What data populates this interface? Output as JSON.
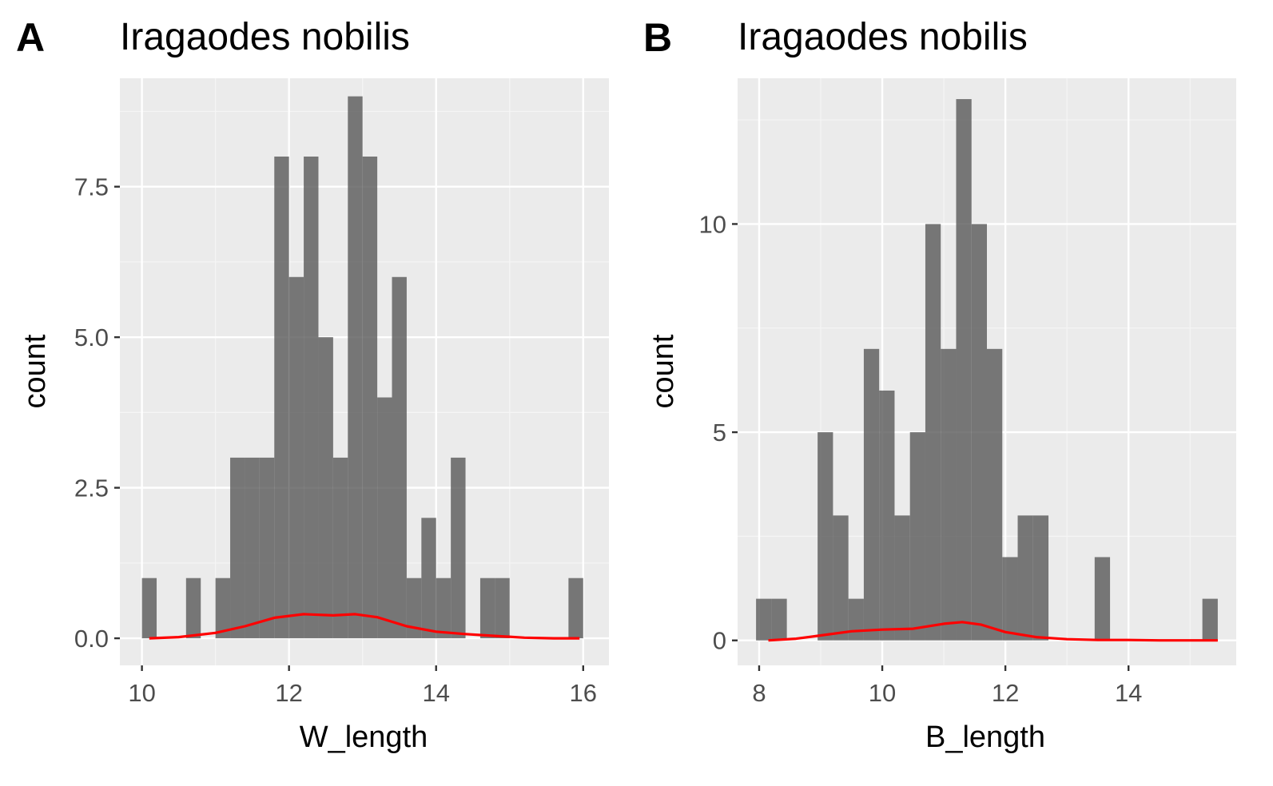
{
  "chart_data": [
    {
      "panel": "A",
      "type": "bar",
      "subtype": "histogram-with-density",
      "title": "Iragaodes nobilis",
      "xlabel": "W_length",
      "ylabel": "count",
      "xlim": [
        9.7,
        16.35
      ],
      "ylim": [
        -0.45,
        9.3
      ],
      "xticks": [
        10,
        12,
        14,
        16
      ],
      "xtick_labels": [
        "10",
        "12",
        "14",
        "16"
      ],
      "yticks": [
        0,
        2.5,
        5,
        7.5
      ],
      "ytick_labels": [
        "0.0",
        "2.5",
        "5.0",
        "7.5"
      ],
      "grid": true,
      "bin_width": 0.2,
      "bins": [
        {
          "x0": 10.0,
          "x1": 10.2,
          "count": 1
        },
        {
          "x0": 10.2,
          "x1": 10.4,
          "count": 0
        },
        {
          "x0": 10.4,
          "x1": 10.6,
          "count": 0
        },
        {
          "x0": 10.6,
          "x1": 10.8,
          "count": 1
        },
        {
          "x0": 10.8,
          "x1": 11.0,
          "count": 0
        },
        {
          "x0": 11.0,
          "x1": 11.2,
          "count": 1
        },
        {
          "x0": 11.2,
          "x1": 11.4,
          "count": 3
        },
        {
          "x0": 11.4,
          "x1": 11.6,
          "count": 3
        },
        {
          "x0": 11.6,
          "x1": 11.8,
          "count": 3
        },
        {
          "x0": 11.8,
          "x1": 12.0,
          "count": 8
        },
        {
          "x0": 12.0,
          "x1": 12.2,
          "count": 6
        },
        {
          "x0": 12.2,
          "x1": 12.4,
          "count": 8
        },
        {
          "x0": 12.4,
          "x1": 12.6,
          "count": 5
        },
        {
          "x0": 12.6,
          "x1": 12.8,
          "count": 3
        },
        {
          "x0": 12.8,
          "x1": 13.0,
          "count": 9
        },
        {
          "x0": 13.0,
          "x1": 13.2,
          "count": 8
        },
        {
          "x0": 13.2,
          "x1": 13.4,
          "count": 4
        },
        {
          "x0": 13.4,
          "x1": 13.6,
          "count": 6
        },
        {
          "x0": 13.6,
          "x1": 13.8,
          "count": 1
        },
        {
          "x0": 13.8,
          "x1": 14.0,
          "count": 2
        },
        {
          "x0": 14.0,
          "x1": 14.2,
          "count": 1
        },
        {
          "x0": 14.2,
          "x1": 14.4,
          "count": 3
        },
        {
          "x0": 14.4,
          "x1": 14.6,
          "count": 0
        },
        {
          "x0": 14.6,
          "x1": 14.8,
          "count": 1
        },
        {
          "x0": 14.8,
          "x1": 15.0,
          "count": 1
        },
        {
          "x0": 15.0,
          "x1": 15.2,
          "count": 0
        },
        {
          "x0": 15.2,
          "x1": 15.4,
          "count": 0
        },
        {
          "x0": 15.4,
          "x1": 15.6,
          "count": 0
        },
        {
          "x0": 15.6,
          "x1": 15.8,
          "count": 0
        },
        {
          "x0": 15.8,
          "x1": 16.0,
          "count": 1
        }
      ],
      "density": {
        "color": "#ff0000",
        "x": [
          10.1,
          10.5,
          11.0,
          11.4,
          11.8,
          12.2,
          12.6,
          12.9,
          13.2,
          13.6,
          14.0,
          14.4,
          14.8,
          15.2,
          15.6,
          15.95
        ],
        "y": [
          0.0,
          0.02,
          0.09,
          0.2,
          0.34,
          0.4,
          0.38,
          0.4,
          0.35,
          0.2,
          0.11,
          0.07,
          0.04,
          0.01,
          0.0,
          0.0
        ]
      }
    },
    {
      "panel": "B",
      "type": "bar",
      "subtype": "histogram-with-density",
      "title": "Iragaodes nobilis",
      "xlabel": "B_length",
      "ylabel": "count",
      "xlim": [
        7.65,
        15.75
      ],
      "ylim": [
        -0.6,
        13.5
      ],
      "xticks": [
        8,
        10,
        12,
        14
      ],
      "xtick_labels": [
        "8",
        "10",
        "12",
        "14"
      ],
      "yticks": [
        0,
        5,
        10
      ],
      "ytick_labels": [
        "0",
        "5",
        "10"
      ],
      "grid": true,
      "bin_width": 0.25,
      "bins": [
        {
          "x0": 7.95,
          "x1": 8.2,
          "count": 1
        },
        {
          "x0": 8.2,
          "x1": 8.45,
          "count": 1
        },
        {
          "x0": 8.45,
          "x1": 8.7,
          "count": 0
        },
        {
          "x0": 8.7,
          "x1": 8.95,
          "count": 0
        },
        {
          "x0": 8.95,
          "x1": 9.2,
          "count": 5
        },
        {
          "x0": 9.2,
          "x1": 9.45,
          "count": 3
        },
        {
          "x0": 9.45,
          "x1": 9.7,
          "count": 1
        },
        {
          "x0": 9.7,
          "x1": 9.95,
          "count": 7
        },
        {
          "x0": 9.95,
          "x1": 10.2,
          "count": 6
        },
        {
          "x0": 10.2,
          "x1": 10.45,
          "count": 3
        },
        {
          "x0": 10.45,
          "x1": 10.7,
          "count": 5
        },
        {
          "x0": 10.7,
          "x1": 10.95,
          "count": 10
        },
        {
          "x0": 10.95,
          "x1": 11.2,
          "count": 7
        },
        {
          "x0": 11.2,
          "x1": 11.45,
          "count": 13
        },
        {
          "x0": 11.45,
          "x1": 11.7,
          "count": 10
        },
        {
          "x0": 11.7,
          "x1": 11.95,
          "count": 7
        },
        {
          "x0": 11.95,
          "x1": 12.2,
          "count": 2
        },
        {
          "x0": 12.2,
          "x1": 12.45,
          "count": 3
        },
        {
          "x0": 12.45,
          "x1": 12.7,
          "count": 3
        },
        {
          "x0": 12.7,
          "x1": 12.95,
          "count": 0
        },
        {
          "x0": 12.95,
          "x1": 13.2,
          "count": 0
        },
        {
          "x0": 13.2,
          "x1": 13.45,
          "count": 0
        },
        {
          "x0": 13.45,
          "x1": 13.7,
          "count": 2
        },
        {
          "x0": 13.7,
          "x1": 13.95,
          "count": 0
        },
        {
          "x0": 13.95,
          "x1": 14.2,
          "count": 0
        },
        {
          "x0": 14.2,
          "x1": 14.45,
          "count": 0
        },
        {
          "x0": 14.45,
          "x1": 14.7,
          "count": 0
        },
        {
          "x0": 14.7,
          "x1": 14.95,
          "count": 0
        },
        {
          "x0": 14.95,
          "x1": 15.2,
          "count": 0
        },
        {
          "x0": 15.2,
          "x1": 15.45,
          "count": 1
        }
      ],
      "density": {
        "color": "#ff0000",
        "x": [
          8.15,
          8.6,
          9.0,
          9.5,
          10.0,
          10.5,
          11.0,
          11.3,
          11.6,
          12.0,
          12.5,
          13.0,
          13.5,
          14.0,
          14.5,
          15.0,
          15.45
        ],
        "y": [
          0.0,
          0.04,
          0.12,
          0.22,
          0.26,
          0.28,
          0.4,
          0.44,
          0.38,
          0.2,
          0.08,
          0.03,
          0.01,
          0.01,
          0.0,
          0.0,
          0.0
        ]
      }
    }
  ],
  "colors": {
    "panel_background": "#ebebeb",
    "grid_major": "#ffffff",
    "grid_minor": "#f5f5f5",
    "bar_fill": "#595959",
    "bar_opacity": 0.8,
    "density_line": "#ff0000",
    "tick_mark": "#333333"
  }
}
